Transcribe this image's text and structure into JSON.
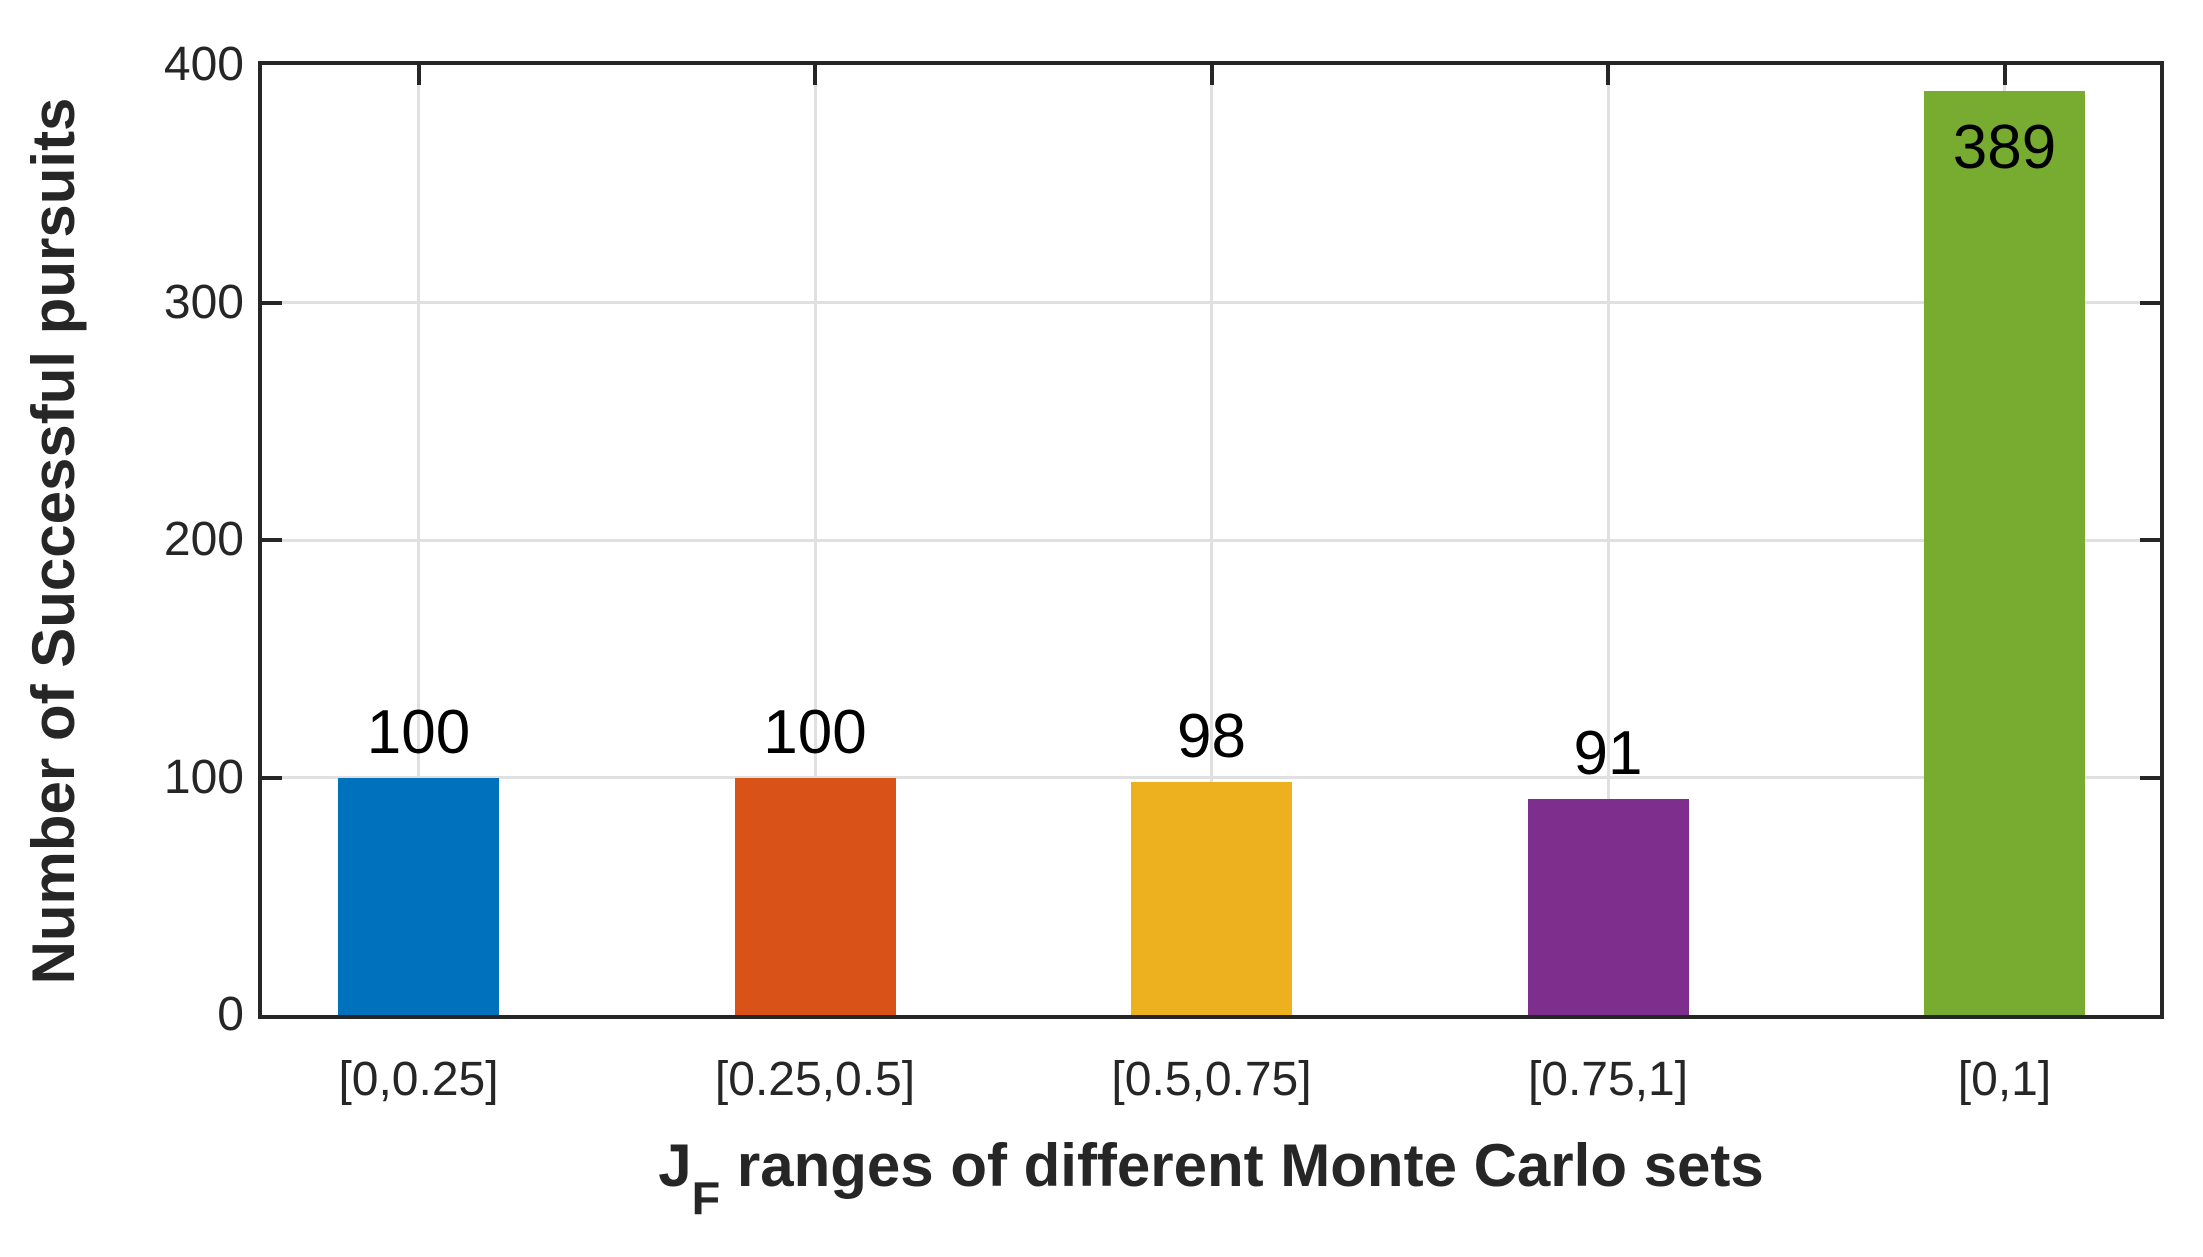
{
  "chart_data": {
    "type": "bar",
    "categories": [
      "[0,0.25]",
      "[0.25,0.5]",
      "[0.5,0.75]",
      "[0.75,1]",
      "[0,1]"
    ],
    "values": [
      100,
      100,
      98,
      91,
      389
    ],
    "bar_labels": [
      "100",
      "100",
      "98",
      "91",
      "389"
    ],
    "bar_colors": [
      "#0072BD",
      "#D95319",
      "#EDB120",
      "#7E2F8E",
      "#77AC30"
    ],
    "ylabel": "Number of Successful pursuits",
    "xlabel": {
      "main": "J",
      "sub": "F",
      "rest": " ranges of different Monte Carlo sets"
    },
    "yticks": [
      "0",
      "100",
      "200",
      "300",
      "400"
    ],
    "ytick_values": [
      0,
      100,
      200,
      300,
      400
    ],
    "ylim": [
      0,
      400
    ],
    "grid": true,
    "legend": "none",
    "axis_color": "#262626",
    "grid_color": "#e0e0e0",
    "value_label_color": "#000000",
    "background_color": "#ffffff"
  }
}
